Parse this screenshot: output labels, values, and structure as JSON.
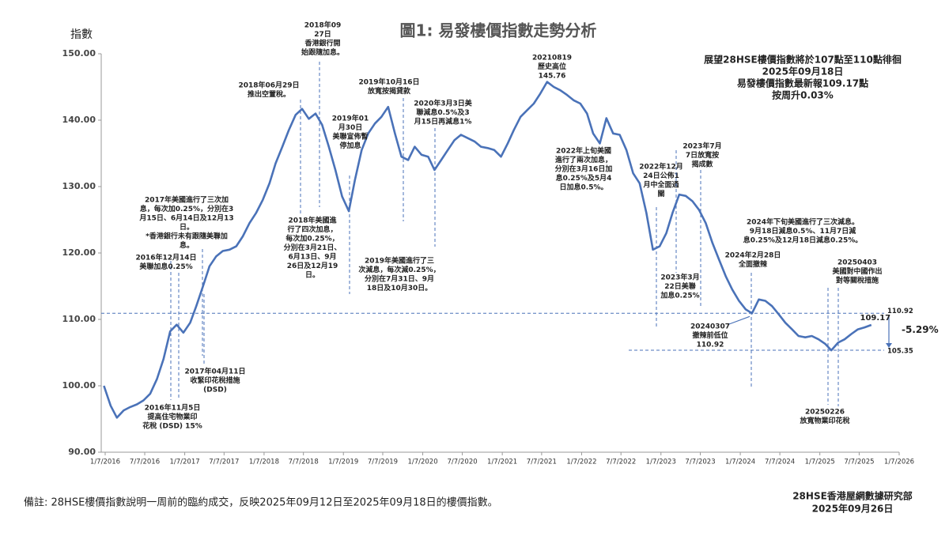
{
  "chart_data": {
    "type": "line",
    "title": "圖1: 易發樓價指數走勢分析",
    "y_label": "指數",
    "x": [
      "2016-01",
      "2016-02",
      "2016-03",
      "2016-04",
      "2016-05",
      "2016-06",
      "2016-07",
      "2016-08",
      "2016-09",
      "2016-10",
      "2016-11",
      "2016-12",
      "2017-01",
      "2017-02",
      "2017-03",
      "2017-04",
      "2017-05",
      "2017-06",
      "2017-07",
      "2017-08",
      "2017-09",
      "2017-10",
      "2017-11",
      "2017-12",
      "2018-01",
      "2018-02",
      "2018-03",
      "2018-04",
      "2018-05",
      "2018-06",
      "2018-07",
      "2018-08",
      "2018-09",
      "2018-10",
      "2018-11",
      "2018-12",
      "2019-01",
      "2019-02",
      "2019-03",
      "2019-04",
      "2019-05",
      "2019-06",
      "2019-07",
      "2019-08",
      "2019-09",
      "2019-10",
      "2019-11",
      "2019-12",
      "2020-01",
      "2020-02",
      "2020-03",
      "2020-04",
      "2020-05",
      "2020-06",
      "2020-07",
      "2020-08",
      "2020-09",
      "2020-10",
      "2020-11",
      "2020-12",
      "2021-01",
      "2021-02",
      "2021-03",
      "2021-04",
      "2021-05",
      "2021-06",
      "2021-07",
      "2021-08",
      "2021-09",
      "2021-10",
      "2021-11",
      "2021-12",
      "2022-01",
      "2022-02",
      "2022-03",
      "2022-04",
      "2022-05",
      "2022-06",
      "2022-07",
      "2022-08",
      "2022-09",
      "2022-10",
      "2022-11",
      "2022-12",
      "2023-01",
      "2023-02",
      "2023-03",
      "2023-04",
      "2023-05",
      "2023-06",
      "2023-07",
      "2023-08",
      "2023-09",
      "2023-10",
      "2023-11",
      "2023-12",
      "2024-01",
      "2024-02",
      "2024-03",
      "2024-04",
      "2024-05",
      "2024-06",
      "2024-07",
      "2024-08",
      "2024-09",
      "2024-10",
      "2024-11",
      "2024-12",
      "2025-01",
      "2025-02",
      "2025-03",
      "2025-04",
      "2025-05",
      "2025-06",
      "2025-07",
      "2025-08",
      "2025-09"
    ],
    "series": [
      {
        "name": "易發樓價指數",
        "color": "#4a72b8",
        "values": [
          100.0,
          97.0,
          95.2,
          96.3,
          96.8,
          97.2,
          97.8,
          98.8,
          101.0,
          104.0,
          108.2,
          109.2,
          108.0,
          109.5,
          112.0,
          115.0,
          118.0,
          119.5,
          120.3,
          120.5,
          121.0,
          122.5,
          124.5,
          126.0,
          128.0,
          130.5,
          133.5,
          136.0,
          138.5,
          140.8,
          141.7,
          140.2,
          141.0,
          139.3,
          136.0,
          132.5,
          128.5,
          126.3,
          131.0,
          135.5,
          138.0,
          139.5,
          140.5,
          142.0,
          138.0,
          134.5,
          134.0,
          136.0,
          134.8,
          134.5,
          132.5,
          134.0,
          135.5,
          137.0,
          137.8,
          137.3,
          136.8,
          136.0,
          135.8,
          135.5,
          134.5,
          136.5,
          138.5,
          140.5,
          141.5,
          142.5,
          144.0,
          145.76,
          145.0,
          144.5,
          143.8,
          143.0,
          142.5,
          141.0,
          138.0,
          136.5,
          140.3,
          138.0,
          137.8,
          135.5,
          132.0,
          130.5,
          126.0,
          120.5,
          121.0,
          123.0,
          126.0,
          128.8,
          128.6,
          127.8,
          126.5,
          124.5,
          121.5,
          119.0,
          116.5,
          114.5,
          112.8,
          111.5,
          110.92,
          113.0,
          112.8,
          112.0,
          110.8,
          109.5,
          108.5,
          107.5,
          107.3,
          107.5,
          107.0,
          106.3,
          105.35,
          106.5,
          107.0,
          107.8,
          108.5,
          108.8,
          109.17
        ]
      }
    ],
    "xlim": [
      "2016-01-07",
      "2026-01-07"
    ],
    "xticks": [
      {
        "value": "2016-01-07",
        "label": "1/7/2016"
      },
      {
        "value": "2016-07-07",
        "label": "7/7/2016"
      },
      {
        "value": "2017-01-07",
        "label": "1/7/2017"
      },
      {
        "value": "2017-07-07",
        "label": "7/7/2017"
      },
      {
        "value": "2018-01-07",
        "label": "1/7/2018"
      },
      {
        "value": "2018-07-07",
        "label": "7/7/2018"
      },
      {
        "value": "2019-01-07",
        "label": "1/7/2019"
      },
      {
        "value": "2019-07-07",
        "label": "7/7/2019"
      },
      {
        "value": "2020-01-07",
        "label": "1/7/2020"
      },
      {
        "value": "2020-07-07",
        "label": "7/7/2020"
      },
      {
        "value": "2021-01-07",
        "label": "1/7/2021"
      },
      {
        "value": "2021-07-07",
        "label": "7/7/2021"
      },
      {
        "value": "2022-01-07",
        "label": "1/7/2022"
      },
      {
        "value": "2022-07-07",
        "label": "7/7/2022"
      },
      {
        "value": "2023-01-07",
        "label": "1/7/2023"
      },
      {
        "value": "2023-07-07",
        "label": "7/7/2023"
      },
      {
        "value": "2024-01-07",
        "label": "1/7/2024"
      },
      {
        "value": "2024-07-07",
        "label": "7/7/2024"
      },
      {
        "value": "2025-01-07",
        "label": "1/7/2025"
      },
      {
        "value": "2025-07-07",
        "label": "7/7/2025"
      },
      {
        "value": "2026-01-07",
        "label": "1/7/2026"
      }
    ],
    "ylim": [
      90,
      150
    ],
    "yticks": [
      {
        "value": 90,
        "label": "90.00"
      },
      {
        "value": 100,
        "label": "100.00"
      },
      {
        "value": 110,
        "label": "110.00"
      },
      {
        "value": 120,
        "label": "120.00"
      },
      {
        "value": 130,
        "label": "130.00"
      },
      {
        "value": 140,
        "label": "140.00"
      },
      {
        "value": 150,
        "label": "150.00"
      }
    ],
    "reference_lines": [
      110.92,
      105.35
    ],
    "last_label": 109.17,
    "change_label": "-5.29%",
    "info_box": [
      "展望28HSE樓價指數將於107點至110點徘徊",
      "2025年09月18日",
      "易發樓價指數最新報109.17點",
      "按周升0.03%"
    ],
    "annotations": [
      {
        "lines": [
          "2016年11月5日",
          "提高住宅物業印",
          "花稅 (DSD) 15%"
        ]
      },
      {
        "lines": [
          "2016年12月14日",
          "美聯加息0.25%"
        ]
      },
      {
        "lines": [
          "2017年美國進行了三次加",
          "息，每次加0.25%，分別在3",
          "月15日、6月14日及12月13",
          "日。",
          "*香港銀行未有跟隨美聯加",
          "息。"
        ]
      },
      {
        "lines": [
          "2017年04月11日",
          "收緊印花稅措施",
          "(DSD)"
        ]
      },
      {
        "lines": [
          "2018年06月29日",
          "推出空置稅。"
        ]
      },
      {
        "lines": [
          "2018年09",
          "27日",
          "香港銀行開",
          "始跟隨加息。"
        ]
      },
      {
        "lines": [
          "2018年美國進",
          "行了四次加息，",
          "每次加0.25%，",
          "分別在3月21日、",
          "6月13日、9月",
          "26日及12月19",
          "日。"
        ]
      },
      {
        "lines": [
          "2019年01",
          "月30日",
          "美聯宣佈暫",
          "停加息"
        ]
      },
      {
        "lines": [
          "2019年10月16日",
          "放寬按揭貸款"
        ]
      },
      {
        "lines": [
          "2019年美國進行了三",
          "次減息，每次減0.25%，",
          "分別在7月31日、9月",
          "18日及10月30日。"
        ]
      },
      {
        "lines": [
          "2020年3月3日美",
          "聯減息0.5%及3",
          "月15日再減息1%"
        ]
      },
      {
        "lines": [
          "20210819",
          "歷史高位",
          "145.76"
        ]
      },
      {
        "lines": [
          "2022年上旬美國",
          "進行了兩次加息，",
          "分別在3月16日加",
          "息0.25%及5月4",
          "日加息0.5%。"
        ]
      },
      {
        "lines": [
          "2022年12月",
          "24日公佈1",
          "月中全面通",
          "關"
        ]
      },
      {
        "lines": [
          "2023年3月",
          "22日美聯",
          "加息0.25%"
        ]
      },
      {
        "lines": [
          "2023年7月",
          "7日放寬按",
          "揭成數"
        ]
      },
      {
        "lines": [
          "2024年下旬美國進行了三次減息。",
          "9月18日減息0.5%、11月7日減",
          "息0.25%及12月18日減息0.25%。"
        ]
      },
      {
        "lines": [
          "2024年2月28日",
          "全面撤辣"
        ]
      },
      {
        "lines": [
          "20240307",
          "撤辣前低位",
          "110.92"
        ]
      },
      {
        "lines": [
          "20250403",
          "美國對中國作出",
          "對等關稅措施"
        ]
      },
      {
        "lines": [
          "20250226",
          "放寬物業印花稅"
        ]
      }
    ],
    "footnote": "備註: 28HSE樓價指數說明一周前的臨約成交，反映2025年09月12日至2025年09月18日的樓價指數。",
    "source": [
      "28HSE香港屋網數據研究部",
      "2025年09月26日"
    ]
  }
}
